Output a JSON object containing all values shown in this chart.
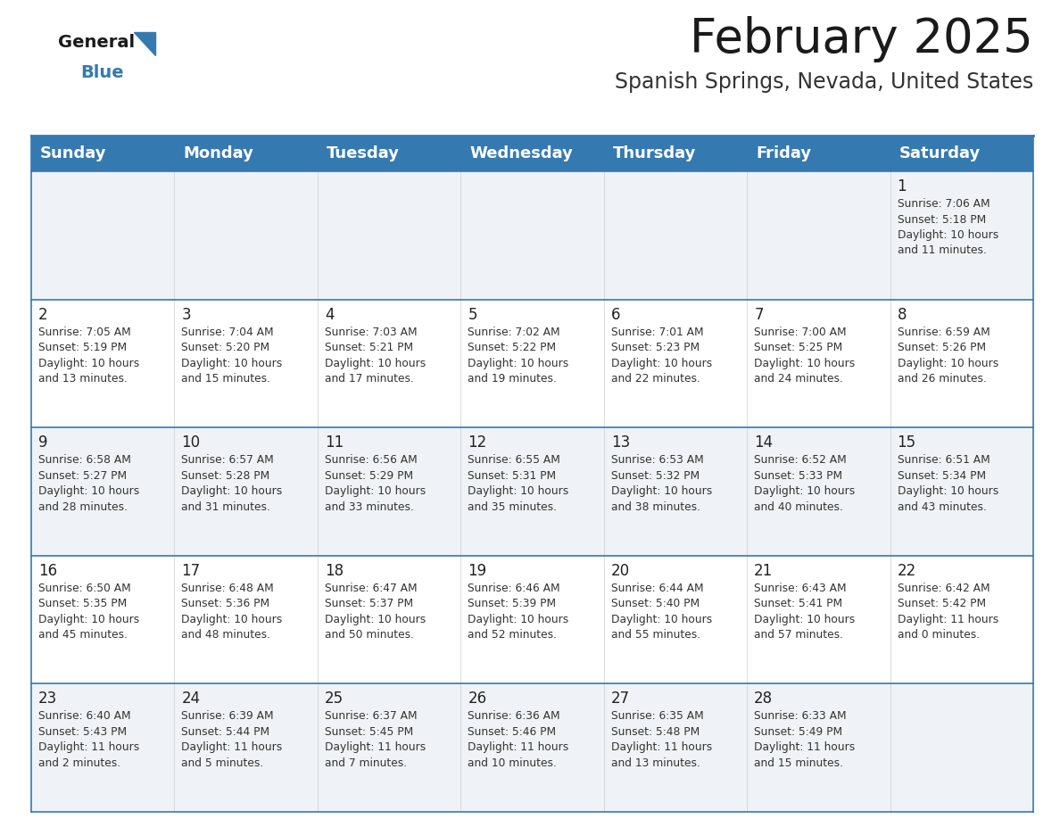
{
  "title": "February 2025",
  "subtitle": "Spanish Springs, Nevada, United States",
  "header_color": "#3579b1",
  "header_text_color": "#ffffff",
  "row_bg_odd": "#eff3f7",
  "row_bg_even": "#ffffff",
  "border_color": "#3579b1",
  "day_names": [
    "Sunday",
    "Monday",
    "Tuesday",
    "Wednesday",
    "Thursday",
    "Friday",
    "Saturday"
  ],
  "title_fontsize": 38,
  "subtitle_fontsize": 17,
  "header_fontsize": 13,
  "day_num_fontsize": 12,
  "cell_fontsize": 8.8,
  "calendar": [
    [
      {
        "day": "",
        "sunrise": "",
        "sunset": "",
        "daylight": ""
      },
      {
        "day": "",
        "sunrise": "",
        "sunset": "",
        "daylight": ""
      },
      {
        "day": "",
        "sunrise": "",
        "sunset": "",
        "daylight": ""
      },
      {
        "day": "",
        "sunrise": "",
        "sunset": "",
        "daylight": ""
      },
      {
        "day": "",
        "sunrise": "",
        "sunset": "",
        "daylight": ""
      },
      {
        "day": "",
        "sunrise": "",
        "sunset": "",
        "daylight": ""
      },
      {
        "day": "1",
        "sunrise": "7:06 AM",
        "sunset": "5:18 PM",
        "daylight": "10 hours\nand 11 minutes."
      }
    ],
    [
      {
        "day": "2",
        "sunrise": "7:05 AM",
        "sunset": "5:19 PM",
        "daylight": "10 hours\nand 13 minutes."
      },
      {
        "day": "3",
        "sunrise": "7:04 AM",
        "sunset": "5:20 PM",
        "daylight": "10 hours\nand 15 minutes."
      },
      {
        "day": "4",
        "sunrise": "7:03 AM",
        "sunset": "5:21 PM",
        "daylight": "10 hours\nand 17 minutes."
      },
      {
        "day": "5",
        "sunrise": "7:02 AM",
        "sunset": "5:22 PM",
        "daylight": "10 hours\nand 19 minutes."
      },
      {
        "day": "6",
        "sunrise": "7:01 AM",
        "sunset": "5:23 PM",
        "daylight": "10 hours\nand 22 minutes."
      },
      {
        "day": "7",
        "sunrise": "7:00 AM",
        "sunset": "5:25 PM",
        "daylight": "10 hours\nand 24 minutes."
      },
      {
        "day": "8",
        "sunrise": "6:59 AM",
        "sunset": "5:26 PM",
        "daylight": "10 hours\nand 26 minutes."
      }
    ],
    [
      {
        "day": "9",
        "sunrise": "6:58 AM",
        "sunset": "5:27 PM",
        "daylight": "10 hours\nand 28 minutes."
      },
      {
        "day": "10",
        "sunrise": "6:57 AM",
        "sunset": "5:28 PM",
        "daylight": "10 hours\nand 31 minutes."
      },
      {
        "day": "11",
        "sunrise": "6:56 AM",
        "sunset": "5:29 PM",
        "daylight": "10 hours\nand 33 minutes."
      },
      {
        "day": "12",
        "sunrise": "6:55 AM",
        "sunset": "5:31 PM",
        "daylight": "10 hours\nand 35 minutes."
      },
      {
        "day": "13",
        "sunrise": "6:53 AM",
        "sunset": "5:32 PM",
        "daylight": "10 hours\nand 38 minutes."
      },
      {
        "day": "14",
        "sunrise": "6:52 AM",
        "sunset": "5:33 PM",
        "daylight": "10 hours\nand 40 minutes."
      },
      {
        "day": "15",
        "sunrise": "6:51 AM",
        "sunset": "5:34 PM",
        "daylight": "10 hours\nand 43 minutes."
      }
    ],
    [
      {
        "day": "16",
        "sunrise": "6:50 AM",
        "sunset": "5:35 PM",
        "daylight": "10 hours\nand 45 minutes."
      },
      {
        "day": "17",
        "sunrise": "6:48 AM",
        "sunset": "5:36 PM",
        "daylight": "10 hours\nand 48 minutes."
      },
      {
        "day": "18",
        "sunrise": "6:47 AM",
        "sunset": "5:37 PM",
        "daylight": "10 hours\nand 50 minutes."
      },
      {
        "day": "19",
        "sunrise": "6:46 AM",
        "sunset": "5:39 PM",
        "daylight": "10 hours\nand 52 minutes."
      },
      {
        "day": "20",
        "sunrise": "6:44 AM",
        "sunset": "5:40 PM",
        "daylight": "10 hours\nand 55 minutes."
      },
      {
        "day": "21",
        "sunrise": "6:43 AM",
        "sunset": "5:41 PM",
        "daylight": "10 hours\nand 57 minutes."
      },
      {
        "day": "22",
        "sunrise": "6:42 AM",
        "sunset": "5:42 PM",
        "daylight": "11 hours\nand 0 minutes."
      }
    ],
    [
      {
        "day": "23",
        "sunrise": "6:40 AM",
        "sunset": "5:43 PM",
        "daylight": "11 hours\nand 2 minutes."
      },
      {
        "day": "24",
        "sunrise": "6:39 AM",
        "sunset": "5:44 PM",
        "daylight": "11 hours\nand 5 minutes."
      },
      {
        "day": "25",
        "sunrise": "6:37 AM",
        "sunset": "5:45 PM",
        "daylight": "11 hours\nand 7 minutes."
      },
      {
        "day": "26",
        "sunrise": "6:36 AM",
        "sunset": "5:46 PM",
        "daylight": "11 hours\nand 10 minutes."
      },
      {
        "day": "27",
        "sunrise": "6:35 AM",
        "sunset": "5:48 PM",
        "daylight": "11 hours\nand 13 minutes."
      },
      {
        "day": "28",
        "sunrise": "6:33 AM",
        "sunset": "5:49 PM",
        "daylight": "11 hours\nand 15 minutes."
      },
      {
        "day": "",
        "sunrise": "",
        "sunset": "",
        "daylight": ""
      }
    ]
  ]
}
